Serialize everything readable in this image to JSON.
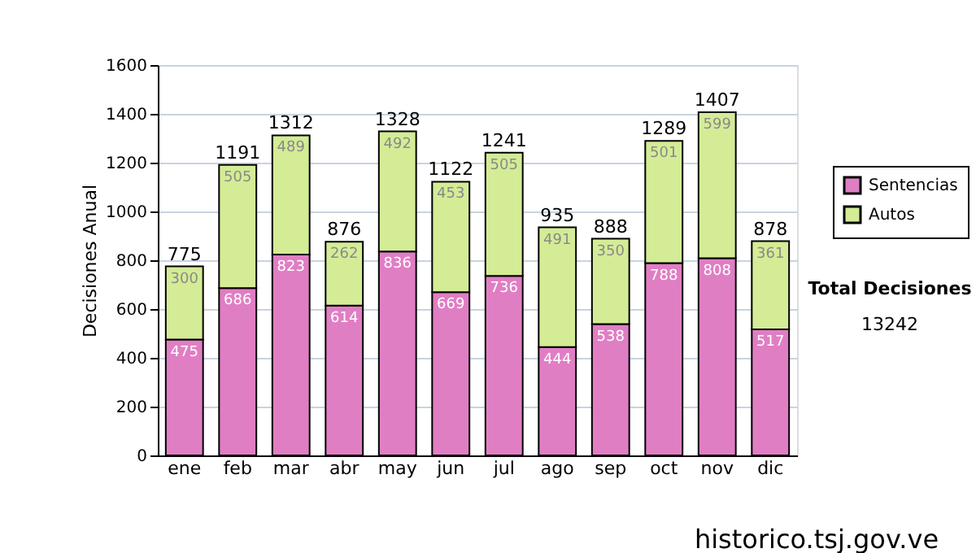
{
  "chart_data": {
    "type": "bar",
    "stacked": true,
    "ylabel": "Decisiones Anual",
    "categories": [
      "ene",
      "feb",
      "mar",
      "abr",
      "may",
      "jun",
      "jul",
      "ago",
      "sep",
      "oct",
      "nov",
      "dic"
    ],
    "series": [
      {
        "name": "Sentencias",
        "color": "#e07ec4",
        "values": [
          475,
          686,
          823,
          614,
          836,
          669,
          736,
          444,
          538,
          788,
          808,
          517
        ]
      },
      {
        "name": "Autos",
        "color": "#d4ec96",
        "values": [
          300,
          505,
          489,
          262,
          492,
          453,
          505,
          491,
          350,
          501,
          599,
          361
        ]
      }
    ],
    "totals": [
      "775",
      "1191",
      "1312",
      "876",
      "1328",
      "1122",
      "1241",
      "935",
      "888",
      "1289",
      "1407",
      "878"
    ],
    "data_labels": true,
    "ylim": [
      0,
      1600
    ],
    "yticks": [
      0,
      200,
      400,
      600,
      800,
      1000,
      1200,
      1400,
      1600
    ],
    "grid": "y",
    "legend": "right",
    "annotations": [
      "Total Decisiones",
      "13242",
      "historico.tsj.gov.ve"
    ]
  }
}
